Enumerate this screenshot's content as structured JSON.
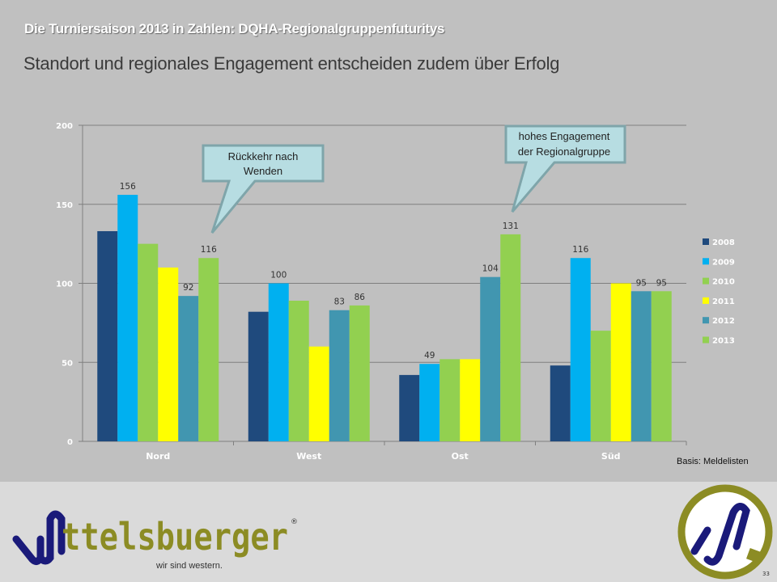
{
  "slide": {
    "kicker": "Die Turniersaison  2013 in Zahlen: DQHA-Regionalgruppenfuturitys",
    "title": "Standort und regionales Engagement entscheiden zudem über Erfolg",
    "source": "Basis: Meldelisten",
    "page_number": "33"
  },
  "callouts": [
    {
      "lines": [
        "Rückkehr nach",
        "Wenden"
      ],
      "points_to": "Nord 2013"
    },
    {
      "lines": [
        "hohes Engagement",
        "der Regionalgruppe"
      ],
      "points_to": "Ost 2013"
    }
  ],
  "branding": {
    "logo_text": "ttelsbuerger",
    "registered_mark": "®",
    "tagline": "wir sind western.",
    "colors": {
      "navy": "#1a1a7a",
      "olive": "#8c8c24"
    }
  },
  "chart_data": {
    "type": "bar",
    "title": "",
    "xlabel": "",
    "ylabel": "",
    "categories": [
      "Nord",
      "West",
      "Ost",
      "Süd"
    ],
    "ylim": [
      0,
      200
    ],
    "yticks": [
      0,
      50,
      100,
      150,
      200
    ],
    "grid": true,
    "legend_position": "right",
    "series": [
      {
        "name": "2008",
        "color": "#1f4a7d",
        "values": [
          133,
          82,
          42,
          48
        ],
        "labels": [
          null,
          null,
          null,
          null
        ]
      },
      {
        "name": "2009",
        "color": "#00b0f0",
        "values": [
          156,
          100,
          49,
          116
        ],
        "labels": [
          "156",
          "100",
          "49",
          "116"
        ]
      },
      {
        "name": "2010",
        "color": "#92d050",
        "values": [
          125,
          89,
          52,
          70
        ],
        "labels": [
          null,
          null,
          null,
          null
        ]
      },
      {
        "name": "2011",
        "color": "#ffff00",
        "values": [
          110,
          60,
          52,
          100
        ],
        "labels": [
          null,
          null,
          null,
          null
        ]
      },
      {
        "name": "2012",
        "color": "#4196b0",
        "values": [
          92,
          83,
          104,
          95
        ],
        "labels": [
          "92",
          "83",
          "104",
          "95"
        ]
      },
      {
        "name": "2013",
        "color": "#92d050",
        "values": [
          116,
          86,
          131,
          95
        ],
        "labels": [
          "116",
          "86",
          "131",
          "95"
        ]
      }
    ]
  }
}
